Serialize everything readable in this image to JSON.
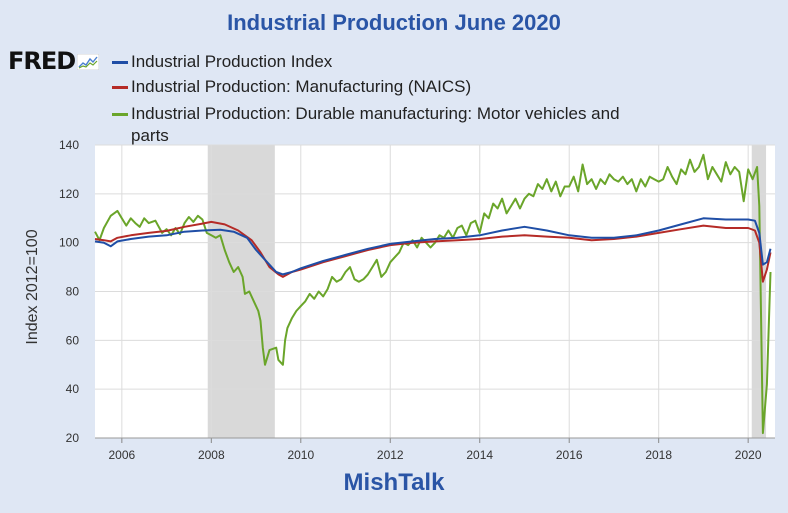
{
  "title": "Industrial Production June 2020",
  "logo_text": "FRED",
  "footer": "MishTalk",
  "colors": {
    "ip": "#1f4ea6",
    "mfg": "#b52b27",
    "motor": "#6aa52a",
    "recession": "#d9d9d9",
    "plot_bg": "#ffffff",
    "grid": "#dcdcdc"
  },
  "chart_data": {
    "type": "line",
    "ylabel": "Index 2012=100",
    "ylim": [
      20,
      140
    ],
    "yticks": [
      20,
      40,
      60,
      80,
      100,
      120,
      140
    ],
    "xlim": [
      2005.4,
      2020.6
    ],
    "xticks": [
      "2006",
      "2008",
      "2010",
      "2012",
      "2014",
      "2016",
      "2018",
      "2020"
    ],
    "grid": true,
    "legend_position": "top",
    "recessions": [
      [
        2007.92,
        2009.42
      ],
      [
        2020.08,
        2020.4
      ]
    ],
    "series": [
      {
        "name": "Industrial Production Index",
        "color": "#1f4ea6",
        "points": [
          [
            2005.4,
            100.5
          ],
          [
            2005.6,
            100.0
          ],
          [
            2005.75,
            98.5
          ],
          [
            2005.9,
            100.5
          ],
          [
            2006.2,
            101.5
          ],
          [
            2006.6,
            102.5
          ],
          [
            2007.0,
            103.0
          ],
          [
            2007.4,
            104.5
          ],
          [
            2007.8,
            105.0
          ],
          [
            2008.2,
            105.3
          ],
          [
            2008.5,
            104.5
          ],
          [
            2008.8,
            102.0
          ],
          [
            2009.0,
            97.0
          ],
          [
            2009.2,
            93.0
          ],
          [
            2009.45,
            88.0
          ],
          [
            2009.6,
            87.0
          ],
          [
            2009.8,
            88.0
          ],
          [
            2010.0,
            89.5
          ],
          [
            2010.5,
            92.5
          ],
          [
            2011.0,
            95.0
          ],
          [
            2011.5,
            97.5
          ],
          [
            2012.0,
            99.5
          ],
          [
            2012.5,
            100.5
          ],
          [
            2013.0,
            101.5
          ],
          [
            2013.5,
            102.0
          ],
          [
            2014.0,
            103.0
          ],
          [
            2014.5,
            105.0
          ],
          [
            2015.0,
            106.5
          ],
          [
            2015.5,
            105.0
          ],
          [
            2016.0,
            103.0
          ],
          [
            2016.5,
            102.0
          ],
          [
            2017.0,
            102.0
          ],
          [
            2017.5,
            103.0
          ],
          [
            2018.0,
            105.0
          ],
          [
            2018.5,
            107.5
          ],
          [
            2019.0,
            110.0
          ],
          [
            2019.5,
            109.5
          ],
          [
            2020.0,
            109.5
          ],
          [
            2020.15,
            109.0
          ],
          [
            2020.25,
            104.0
          ],
          [
            2020.33,
            91.0
          ],
          [
            2020.42,
            92.0
          ],
          [
            2020.5,
            97.5
          ]
        ]
      },
      {
        "name": "Industrial Production: Manufacturing (NAICS)",
        "color": "#b52b27",
        "points": [
          [
            2005.4,
            101.5
          ],
          [
            2005.6,
            101.0
          ],
          [
            2005.75,
            100.5
          ],
          [
            2005.9,
            102.0
          ],
          [
            2006.2,
            103.0
          ],
          [
            2006.6,
            104.0
          ],
          [
            2007.0,
            104.8
          ],
          [
            2007.4,
            106.5
          ],
          [
            2007.8,
            107.8
          ],
          [
            2008.0,
            108.5
          ],
          [
            2008.3,
            107.5
          ],
          [
            2008.6,
            105.0
          ],
          [
            2008.9,
            101.0
          ],
          [
            2009.1,
            96.0
          ],
          [
            2009.3,
            90.0
          ],
          [
            2009.5,
            87.0
          ],
          [
            2009.6,
            86.0
          ],
          [
            2009.8,
            88.0
          ],
          [
            2010.0,
            89.0
          ],
          [
            2010.5,
            92.0
          ],
          [
            2011.0,
            94.5
          ],
          [
            2011.5,
            97.0
          ],
          [
            2012.0,
            99.0
          ],
          [
            2012.5,
            100.0
          ],
          [
            2013.0,
            100.5
          ],
          [
            2013.5,
            101.0
          ],
          [
            2014.0,
            101.5
          ],
          [
            2014.5,
            102.5
          ],
          [
            2015.0,
            103.0
          ],
          [
            2015.5,
            102.5
          ],
          [
            2016.0,
            102.0
          ],
          [
            2016.5,
            101.0
          ],
          [
            2017.0,
            101.5
          ],
          [
            2017.5,
            102.5
          ],
          [
            2018.0,
            104.0
          ],
          [
            2018.5,
            105.5
          ],
          [
            2019.0,
            107.0
          ],
          [
            2019.5,
            106.0
          ],
          [
            2020.0,
            106.0
          ],
          [
            2020.15,
            105.0
          ],
          [
            2020.25,
            100.0
          ],
          [
            2020.33,
            84.0
          ],
          [
            2020.42,
            89.0
          ],
          [
            2020.5,
            96.0
          ]
        ]
      },
      {
        "name": "Industrial Production: Durable manufacturing: Motor vehicles and parts",
        "color": "#6aa52a",
        "points": [
          [
            2005.4,
            104.5
          ],
          [
            2005.5,
            101.0
          ],
          [
            2005.6,
            106.0
          ],
          [
            2005.75,
            111.0
          ],
          [
            2005.9,
            113.0
          ],
          [
            2006.0,
            110.0
          ],
          [
            2006.1,
            107.0
          ],
          [
            2006.2,
            110.0
          ],
          [
            2006.3,
            108.0
          ],
          [
            2006.4,
            106.5
          ],
          [
            2006.5,
            110.0
          ],
          [
            2006.6,
            108.0
          ],
          [
            2006.75,
            109.0
          ],
          [
            2006.9,
            104.0
          ],
          [
            2007.0,
            105.5
          ],
          [
            2007.1,
            103.0
          ],
          [
            2007.2,
            106.0
          ],
          [
            2007.3,
            103.5
          ],
          [
            2007.4,
            108.0
          ],
          [
            2007.5,
            110.5
          ],
          [
            2007.6,
            108.5
          ],
          [
            2007.7,
            111.0
          ],
          [
            2007.8,
            109.5
          ],
          [
            2007.9,
            104.0
          ],
          [
            2008.0,
            103.0
          ],
          [
            2008.1,
            102.0
          ],
          [
            2008.2,
            103.0
          ],
          [
            2008.3,
            97.0
          ],
          [
            2008.4,
            92.0
          ],
          [
            2008.5,
            88.0
          ],
          [
            2008.6,
            90.0
          ],
          [
            2008.7,
            86.0
          ],
          [
            2008.75,
            79.0
          ],
          [
            2008.85,
            80.0
          ],
          [
            2008.95,
            76.0
          ],
          [
            2009.05,
            72.0
          ],
          [
            2009.1,
            68.0
          ],
          [
            2009.15,
            57.0
          ],
          [
            2009.2,
            50.0
          ],
          [
            2009.3,
            56.0
          ],
          [
            2009.45,
            57.0
          ],
          [
            2009.5,
            52.0
          ],
          [
            2009.6,
            50.0
          ],
          [
            2009.65,
            60.0
          ],
          [
            2009.7,
            65.0
          ],
          [
            2009.8,
            69.0
          ],
          [
            2009.9,
            72.0
          ],
          [
            2010.0,
            74.0
          ],
          [
            2010.1,
            76.0
          ],
          [
            2010.2,
            79.0
          ],
          [
            2010.3,
            77.0
          ],
          [
            2010.4,
            80.0
          ],
          [
            2010.5,
            78.0
          ],
          [
            2010.6,
            81.0
          ],
          [
            2010.7,
            86.0
          ],
          [
            2010.8,
            84.0
          ],
          [
            2010.9,
            85.0
          ],
          [
            2011.0,
            88.0
          ],
          [
            2011.1,
            90.0
          ],
          [
            2011.2,
            85.0
          ],
          [
            2011.3,
            84.0
          ],
          [
            2011.4,
            85.0
          ],
          [
            2011.5,
            87.0
          ],
          [
            2011.6,
            90.0
          ],
          [
            2011.7,
            93.0
          ],
          [
            2011.8,
            86.0
          ],
          [
            2011.9,
            88.0
          ],
          [
            2012.0,
            92.0
          ],
          [
            2012.1,
            94.0
          ],
          [
            2012.2,
            96.0
          ],
          [
            2012.3,
            100.0
          ],
          [
            2012.4,
            99.0
          ],
          [
            2012.5,
            101.0
          ],
          [
            2012.6,
            98.0
          ],
          [
            2012.7,
            102.0
          ],
          [
            2012.8,
            100.0
          ],
          [
            2012.9,
            98.0
          ],
          [
            2013.0,
            100.0
          ],
          [
            2013.1,
            103.0
          ],
          [
            2013.2,
            102.0
          ],
          [
            2013.3,
            105.0
          ],
          [
            2013.4,
            102.0
          ],
          [
            2013.5,
            106.0
          ],
          [
            2013.6,
            107.0
          ],
          [
            2013.7,
            103.0
          ],
          [
            2013.8,
            108.0
          ],
          [
            2013.9,
            109.0
          ],
          [
            2014.0,
            104.0
          ],
          [
            2014.1,
            112.0
          ],
          [
            2014.2,
            110.0
          ],
          [
            2014.3,
            116.0
          ],
          [
            2014.4,
            114.0
          ],
          [
            2014.5,
            118.0
          ],
          [
            2014.6,
            112.0
          ],
          [
            2014.7,
            115.0
          ],
          [
            2014.8,
            118.0
          ],
          [
            2014.9,
            114.0
          ],
          [
            2015.0,
            118.0
          ],
          [
            2015.1,
            120.0
          ],
          [
            2015.2,
            119.0
          ],
          [
            2015.3,
            124.0
          ],
          [
            2015.4,
            122.0
          ],
          [
            2015.5,
            126.0
          ],
          [
            2015.6,
            121.0
          ],
          [
            2015.7,
            125.0
          ],
          [
            2015.8,
            119.0
          ],
          [
            2015.9,
            123.0
          ],
          [
            2016.0,
            123.0
          ],
          [
            2016.1,
            127.0
          ],
          [
            2016.2,
            121.0
          ],
          [
            2016.3,
            132.0
          ],
          [
            2016.4,
            124.0
          ],
          [
            2016.5,
            126.0
          ],
          [
            2016.6,
            122.0
          ],
          [
            2016.7,
            126.0
          ],
          [
            2016.8,
            124.0
          ],
          [
            2016.9,
            128.0
          ],
          [
            2017.0,
            126.0
          ],
          [
            2017.1,
            125.0
          ],
          [
            2017.2,
            127.0
          ],
          [
            2017.3,
            124.0
          ],
          [
            2017.4,
            126.0
          ],
          [
            2017.5,
            121.0
          ],
          [
            2017.6,
            126.0
          ],
          [
            2017.7,
            123.0
          ],
          [
            2017.8,
            127.0
          ],
          [
            2017.9,
            126.0
          ],
          [
            2018.0,
            125.0
          ],
          [
            2018.1,
            126.0
          ],
          [
            2018.2,
            131.0
          ],
          [
            2018.3,
            127.0
          ],
          [
            2018.4,
            124.0
          ],
          [
            2018.5,
            130.0
          ],
          [
            2018.6,
            128.0
          ],
          [
            2018.7,
            134.0
          ],
          [
            2018.8,
            129.0
          ],
          [
            2018.9,
            131.0
          ],
          [
            2019.0,
            136.0
          ],
          [
            2019.1,
            126.0
          ],
          [
            2019.2,
            131.0
          ],
          [
            2019.3,
            128.0
          ],
          [
            2019.4,
            125.0
          ],
          [
            2019.5,
            133.0
          ],
          [
            2019.6,
            128.0
          ],
          [
            2019.7,
            131.0
          ],
          [
            2019.8,
            129.0
          ],
          [
            2019.9,
            117.0
          ],
          [
            2020.0,
            130.0
          ],
          [
            2020.1,
            126.0
          ],
          [
            2020.2,
            131.0
          ],
          [
            2020.25,
            115.0
          ],
          [
            2020.33,
            22.0
          ],
          [
            2020.42,
            42.0
          ],
          [
            2020.5,
            88.0
          ]
        ]
      }
    ]
  }
}
